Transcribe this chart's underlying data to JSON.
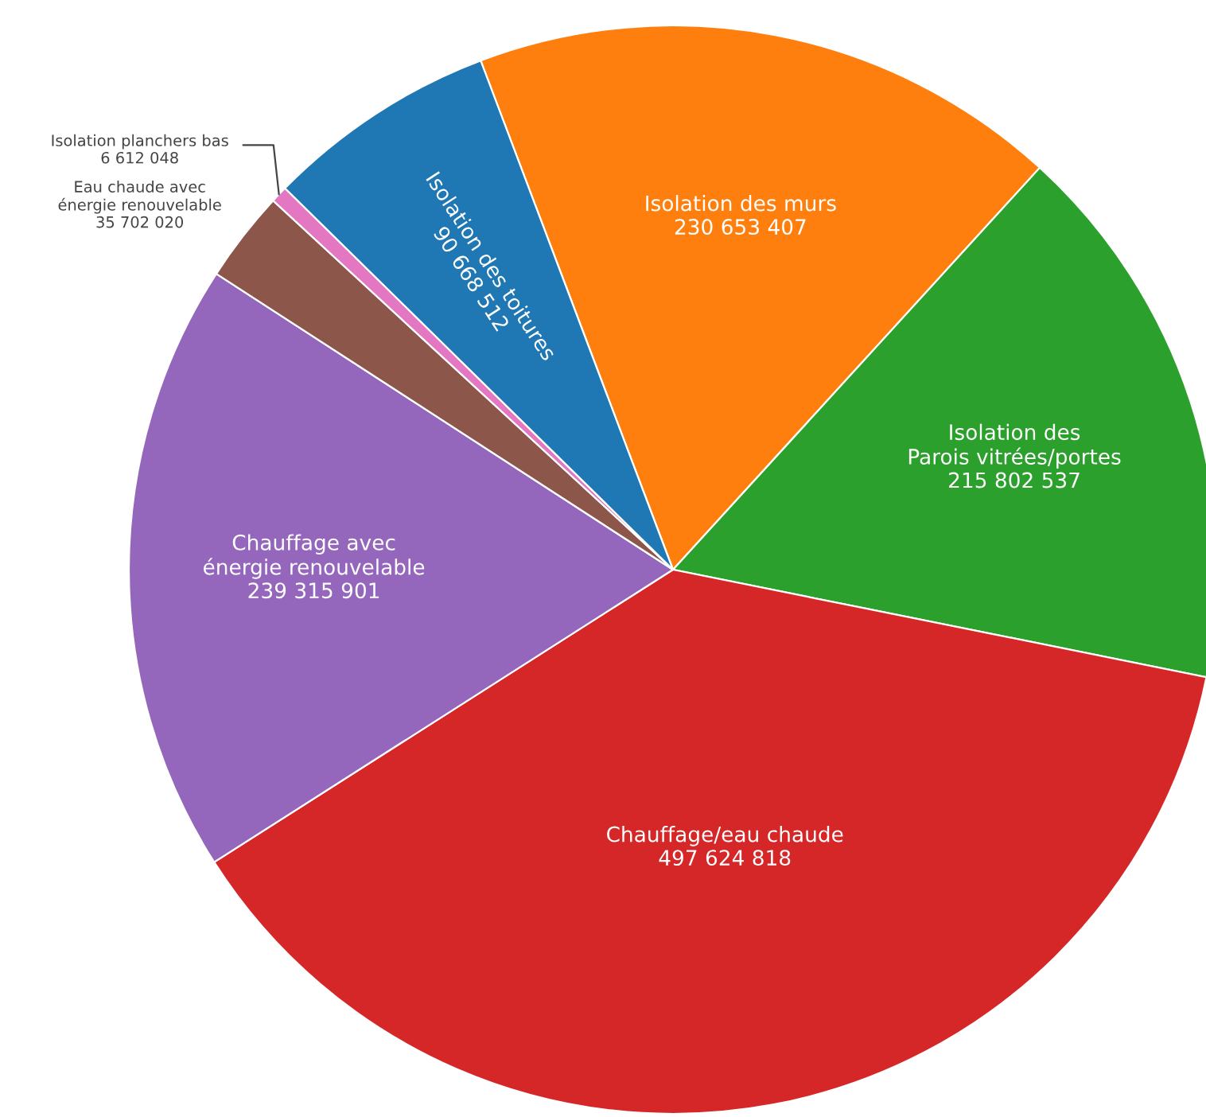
{
  "chart_data": {
    "type": "pie",
    "categories": [
      "Isolation des murs",
      "Isolation des\nParois vitrées/portes",
      "Chauffage/eau chaude",
      "Chauffage avec\nénergie renouvelable",
      "Eau chaude avec\nénergie renouvelable",
      "Isolation planchers bas",
      "Isolation des toitures"
    ],
    "values": [
      230653407,
      215802537,
      497624818,
      239315901,
      35702020,
      6612048,
      90668512
    ],
    "value_labels": [
      "230 653 407",
      "215 802 537",
      "497 624 818",
      "239 315 901",
      "35 702 020",
      "6 612 048",
      "90 668 512"
    ],
    "colors": [
      "#ff7f0e",
      "#2ca02c",
      "#d62728",
      "#9467bd",
      "#8c564b",
      "#e377c2",
      "#1f77b4"
    ],
    "legend": false
  }
}
